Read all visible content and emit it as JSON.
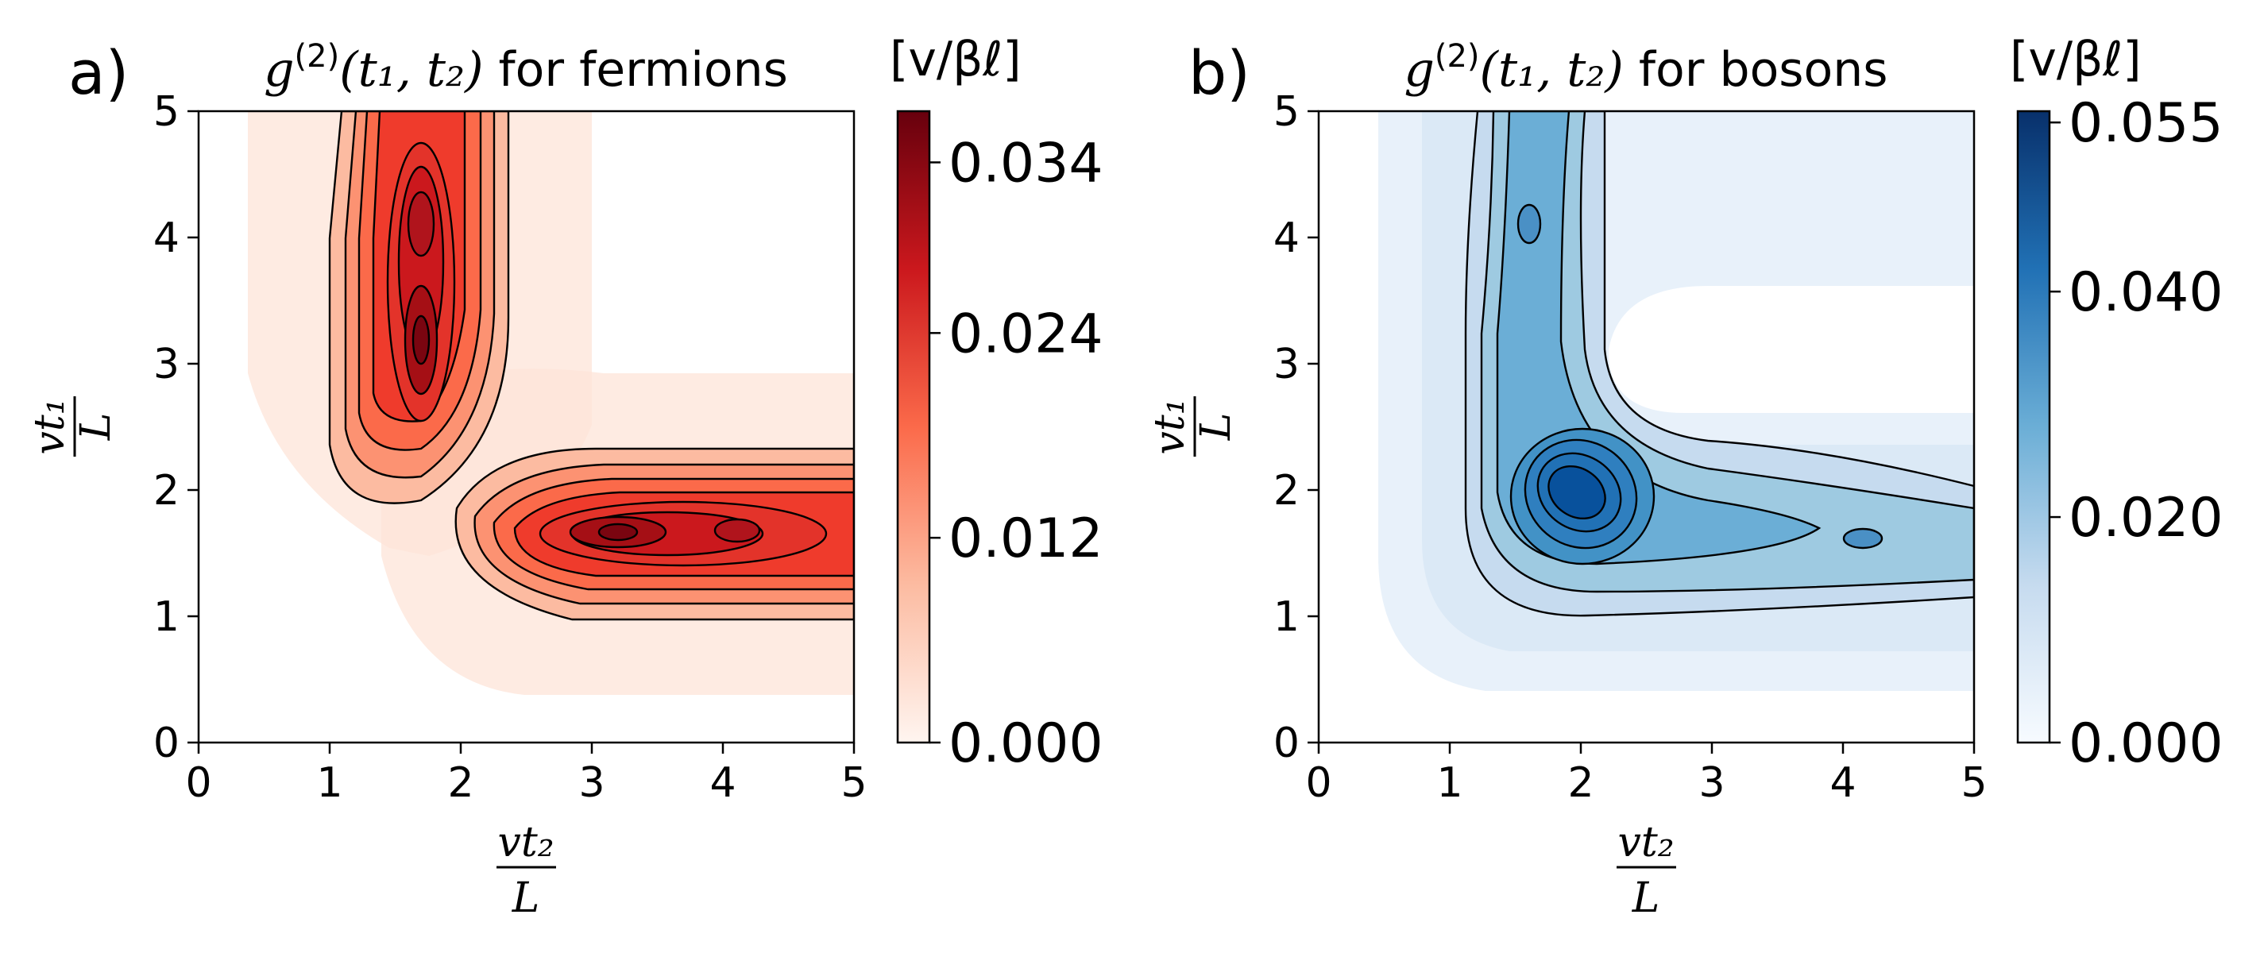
{
  "chart_data": [
    {
      "type": "heatmap",
      "panel_label": "a)",
      "title": {
        "func": "g",
        "sup": "(2)",
        "args": "(t₁, t₂)",
        "suffix": " for fermions"
      },
      "xlabel": {
        "num": "vt₂",
        "den": "L"
      },
      "ylabel": {
        "num": "vt₁",
        "den": "L"
      },
      "xlim": [
        0,
        5
      ],
      "ylim": [
        0,
        5
      ],
      "xticks": [
        "0",
        "1",
        "2",
        "3",
        "4",
        "5"
      ],
      "yticks": [
        "0",
        "1",
        "2",
        "3",
        "4",
        "5"
      ],
      "colormap": "Reds",
      "colorbar": {
        "label": "[v/βℓ]",
        "range": [
          0,
          0.037
        ],
        "ticks": [
          {
            "value": 0.0,
            "label": "0.000"
          },
          {
            "value": 0.012,
            "label": "0.012"
          },
          {
            "value": 0.024,
            "label": "0.024"
          },
          {
            "value": 0.034,
            "label": "0.034"
          }
        ]
      },
      "peaks": [
        {
          "t2": 1.68,
          "t1": 3.15,
          "value": 0.036
        },
        {
          "t2": 1.68,
          "t1": 4.12,
          "value": 0.031
        },
        {
          "t2": 3.15,
          "t1": 1.68,
          "value": 0.036
        },
        {
          "t2": 4.12,
          "t1": 1.68,
          "value": 0.031
        }
      ]
    },
    {
      "type": "heatmap",
      "panel_label": "b)",
      "title": {
        "func": "g",
        "sup": "(2)",
        "args": "(t₁, t₂)",
        "suffix": " for bosons"
      },
      "xlabel": {
        "num": "vt₂",
        "den": "L"
      },
      "ylabel": {
        "num": "vt₁",
        "den": "L"
      },
      "xlim": [
        0,
        5
      ],
      "ylim": [
        0,
        5
      ],
      "xticks": [
        "0",
        "1",
        "2",
        "3",
        "4",
        "5"
      ],
      "yticks": [
        "0",
        "1",
        "2",
        "3",
        "4",
        "5"
      ],
      "colormap": "Blues",
      "colorbar": {
        "label": "[v/βℓ]",
        "range": [
          0,
          0.056
        ],
        "ticks": [
          {
            "value": 0.0,
            "label": "0.000"
          },
          {
            "value": 0.02,
            "label": "0.020"
          },
          {
            "value": 0.04,
            "label": "0.040"
          },
          {
            "value": 0.055,
            "label": "0.055"
          }
        ]
      },
      "peaks": [
        {
          "t2": 1.95,
          "t1": 1.95,
          "value": 0.056
        },
        {
          "t2": 1.65,
          "t1": 4.15,
          "value": 0.028
        },
        {
          "t2": 4.15,
          "t1": 1.65,
          "value": 0.028
        }
      ]
    }
  ]
}
